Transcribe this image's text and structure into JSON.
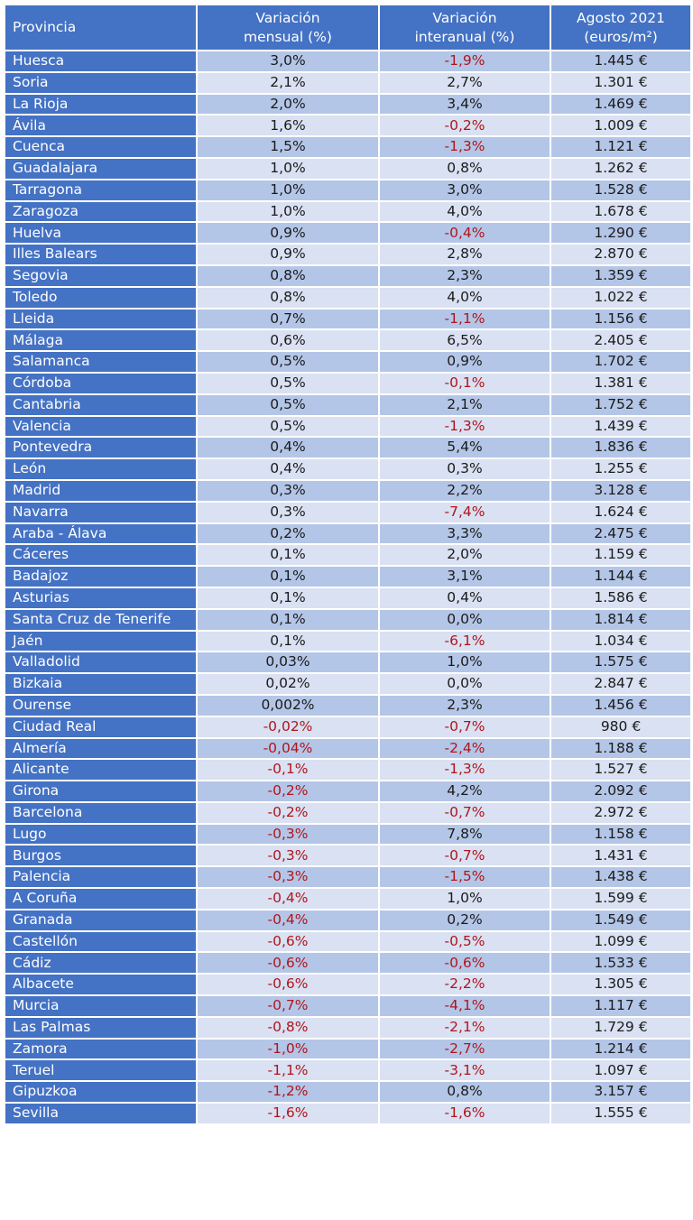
{
  "header": {
    "provincia": "Provincia",
    "mensual_1": "Variación",
    "mensual_2": "mensual (%)",
    "interanual_1": "Variación",
    "interanual_2": "interanual (%)",
    "precio_1": "Agosto 2021",
    "precio_2": "(euros/m²)"
  },
  "colors": {
    "header": "#4472c4",
    "row_dark": "#b4c6e7",
    "row_light": "#d9e1f2",
    "negative": "#b0151c"
  },
  "rows": [
    [
      "Huesca",
      "3,0%",
      "-1,9%",
      "1.445 €"
    ],
    [
      "Soria",
      "2,1%",
      "2,7%",
      "1.301 €"
    ],
    [
      "La Rioja",
      "2,0%",
      "3,4%",
      "1.469 €"
    ],
    [
      "Ávila",
      "1,6%",
      "-0,2%",
      "1.009 €"
    ],
    [
      "Cuenca",
      "1,5%",
      "-1,3%",
      "1.121 €"
    ],
    [
      "Guadalajara",
      "1,0%",
      "0,8%",
      "1.262 €"
    ],
    [
      "Tarragona",
      "1,0%",
      "3,0%",
      "1.528 €"
    ],
    [
      "Zaragoza",
      "1,0%",
      "4,0%",
      "1.678 €"
    ],
    [
      "Huelva",
      "0,9%",
      "-0,4%",
      "1.290 €"
    ],
    [
      "Illes Balears",
      "0,9%",
      "2,8%",
      "2.870 €"
    ],
    [
      "Segovia",
      "0,8%",
      "2,3%",
      "1.359 €"
    ],
    [
      "Toledo",
      "0,8%",
      "4,0%",
      "1.022 €"
    ],
    [
      "Lleida",
      "0,7%",
      "-1,1%",
      "1.156 €"
    ],
    [
      "Málaga",
      "0,6%",
      "6,5%",
      "2.405 €"
    ],
    [
      "Salamanca",
      "0,5%",
      "0,9%",
      "1.702 €"
    ],
    [
      "Córdoba",
      "0,5%",
      "-0,1%",
      "1.381 €"
    ],
    [
      "Cantabria",
      "0,5%",
      "2,1%",
      "1.752 €"
    ],
    [
      "Valencia",
      "0,5%",
      "-1,3%",
      "1.439 €"
    ],
    [
      "Pontevedra",
      "0,4%",
      "5,4%",
      "1.836 €"
    ],
    [
      "León",
      "0,4%",
      "0,3%",
      "1.255 €"
    ],
    [
      "Madrid",
      "0,3%",
      "2,2%",
      "3.128 €"
    ],
    [
      "Navarra",
      "0,3%",
      "-7,4%",
      "1.624 €"
    ],
    [
      "Araba - Álava",
      "0,2%",
      "3,3%",
      "2.475 €"
    ],
    [
      "Cáceres",
      "0,1%",
      "2,0%",
      "1.159 €"
    ],
    [
      "Badajoz",
      "0,1%",
      "3,1%",
      "1.144 €"
    ],
    [
      "Asturias",
      "0,1%",
      "0,4%",
      "1.586 €"
    ],
    [
      "Santa Cruz de Tenerife",
      "0,1%",
      "0,0%",
      "1.814 €"
    ],
    [
      "Jaén",
      "0,1%",
      "-6,1%",
      "1.034 €"
    ],
    [
      "Valladolid",
      "0,03%",
      "1,0%",
      "1.575 €"
    ],
    [
      "Bizkaia",
      "0,02%",
      "0,0%",
      "2.847 €"
    ],
    [
      "Ourense",
      "0,002%",
      "2,3%",
      "1.456 €"
    ],
    [
      "Ciudad Real",
      "-0,02%",
      "-0,7%",
      "980 €"
    ],
    [
      "Almería",
      "-0,04%",
      "-2,4%",
      "1.188 €"
    ],
    [
      "Alicante",
      "-0,1%",
      "-1,3%",
      "1.527 €"
    ],
    [
      "Girona",
      "-0,2%",
      "4,2%",
      "2.092 €"
    ],
    [
      "Barcelona",
      "-0,2%",
      "-0,7%",
      "2.972 €"
    ],
    [
      "Lugo",
      "-0,3%",
      "7,8%",
      "1.158 €"
    ],
    [
      "Burgos",
      "-0,3%",
      "-0,7%",
      "1.431 €"
    ],
    [
      "Palencia",
      "-0,3%",
      "-1,5%",
      "1.438 €"
    ],
    [
      "A Coruña",
      "-0,4%",
      "1,0%",
      "1.599 €"
    ],
    [
      "Granada",
      "-0,4%",
      "0,2%",
      "1.549 €"
    ],
    [
      "Castellón",
      "-0,6%",
      "-0,5%",
      "1.099 €"
    ],
    [
      "Cádiz",
      "-0,6%",
      "-0,6%",
      "1.533 €"
    ],
    [
      "Albacete",
      "-0,6%",
      "-2,2%",
      "1.305 €"
    ],
    [
      "Murcia",
      "-0,7%",
      "-4,1%",
      "1.117 €"
    ],
    [
      "Las Palmas",
      "-0,8%",
      "-2,1%",
      "1.729 €"
    ],
    [
      "Zamora",
      "-1,0%",
      "-2,7%",
      "1.214 €"
    ],
    [
      "Teruel",
      "-1,1%",
      "-3,1%",
      "1.097 €"
    ],
    [
      "Gipuzkoa",
      "-1,2%",
      "0,8%",
      "3.157 €"
    ],
    [
      "Sevilla",
      "-1,6%",
      "-1,6%",
      "1.555 €"
    ]
  ]
}
